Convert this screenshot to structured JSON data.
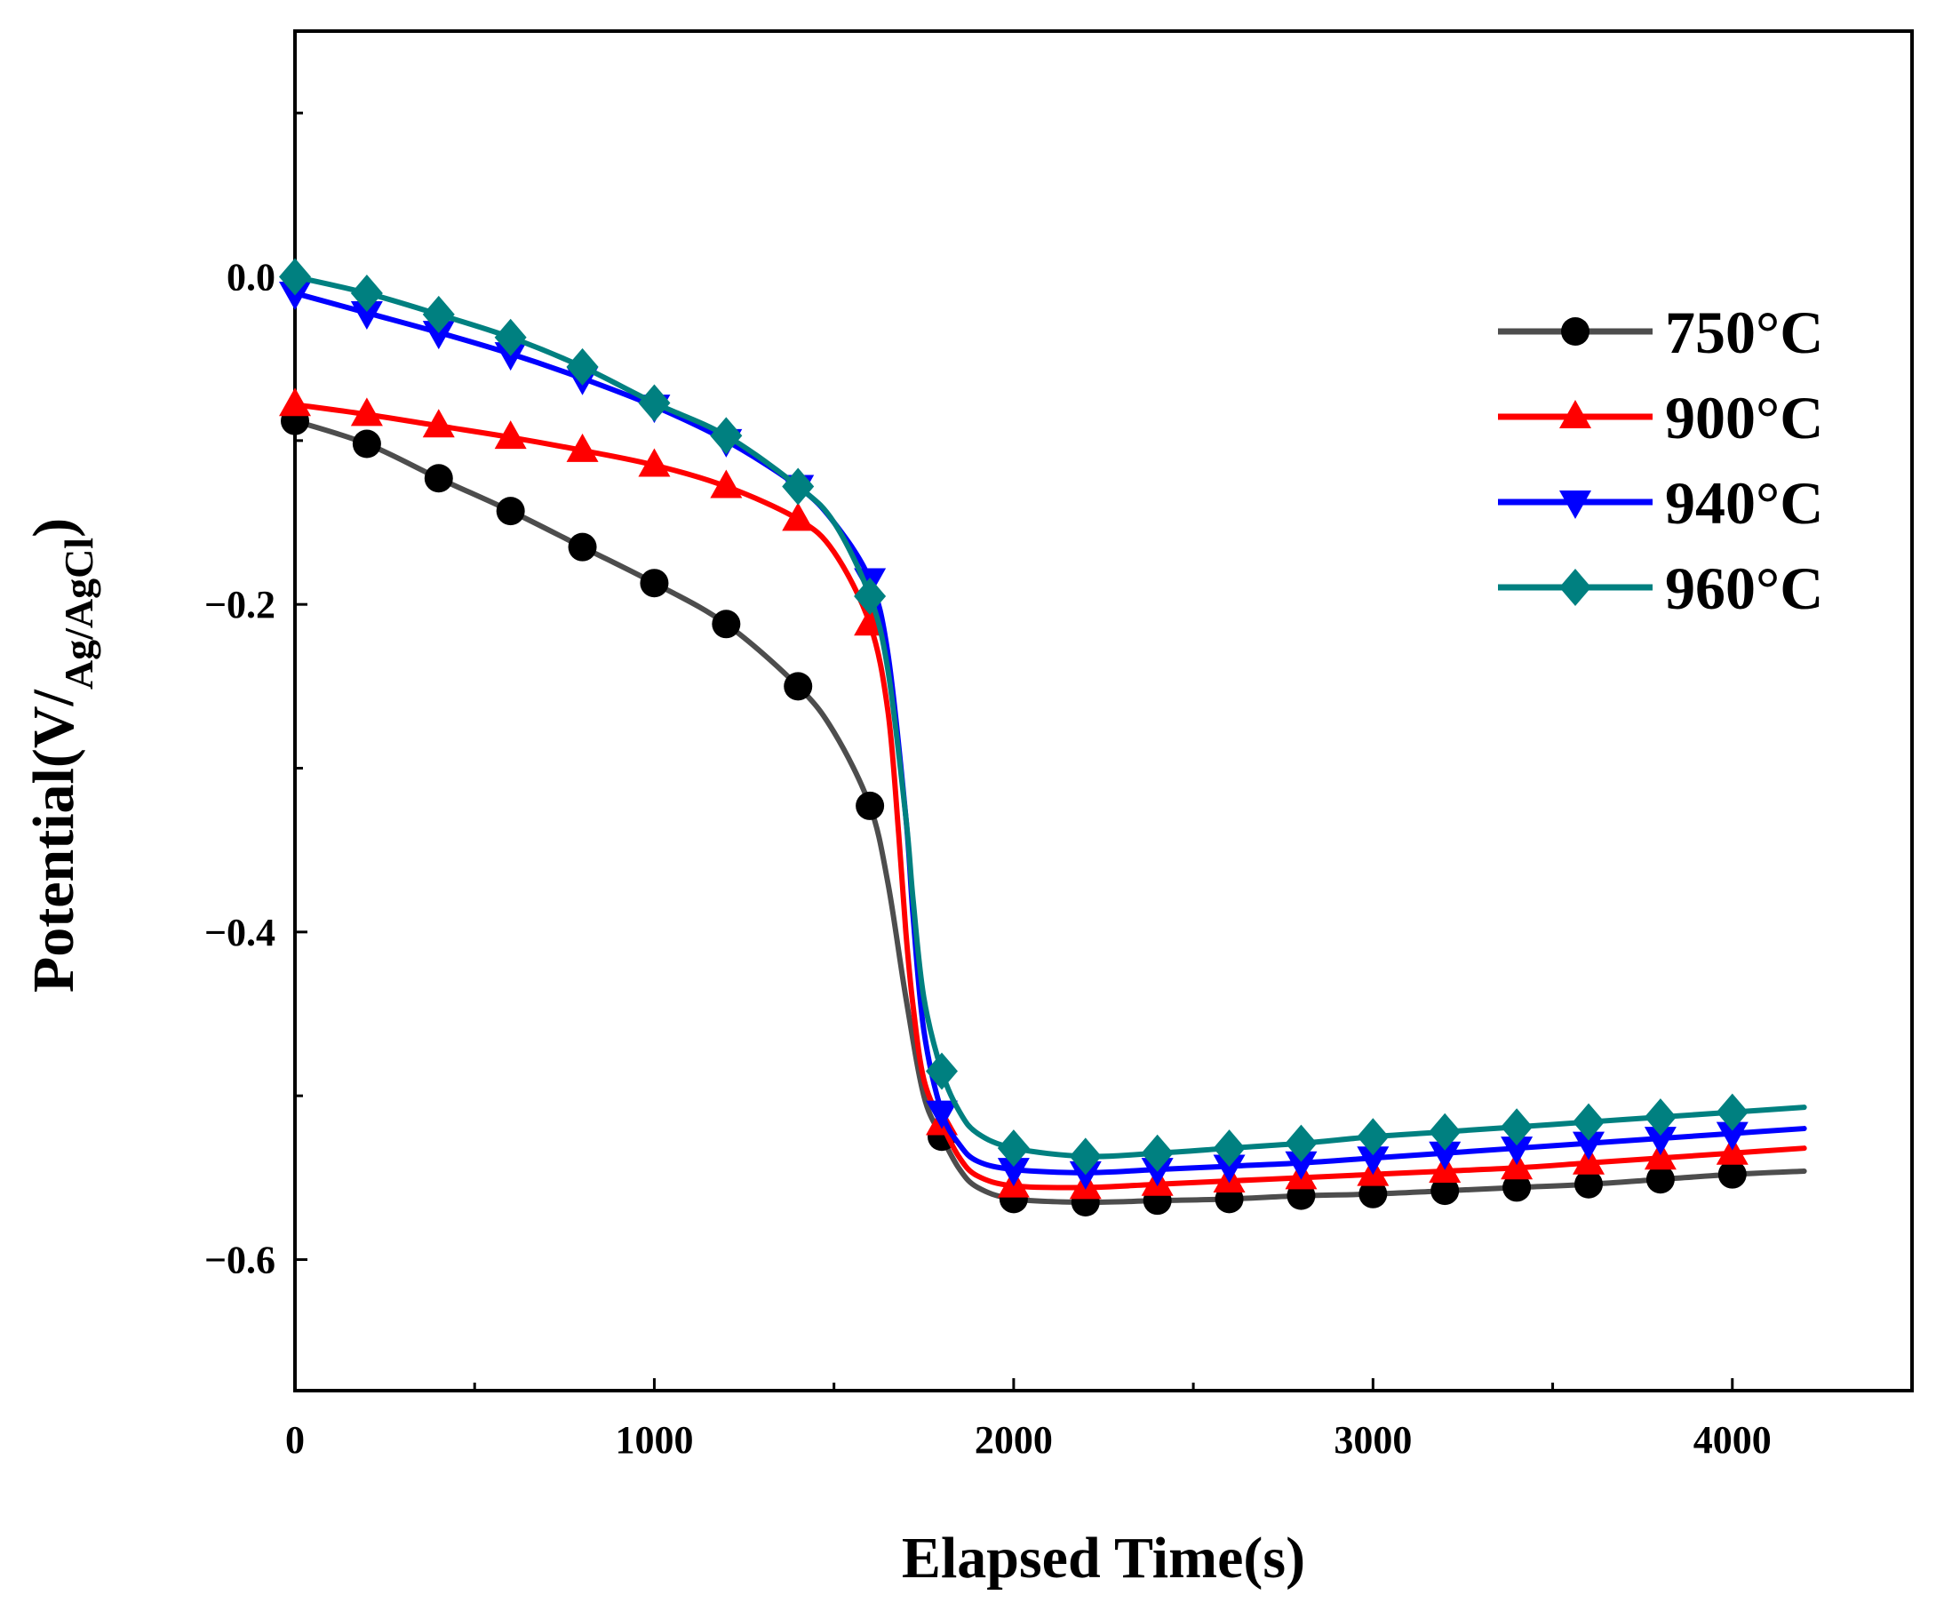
{
  "chart_data": {
    "type": "line",
    "title": "",
    "xlabel": "Elapsed Time(s)",
    "ylabel": {
      "main": "Potential(V/",
      "sub": "Ag/AgCl",
      "close": ")"
    },
    "xlim": [
      0,
      4500
    ],
    "ylim": [
      -0.68,
      0.15
    ],
    "xticks": [
      0,
      1000,
      2000,
      3000,
      4000
    ],
    "xtick_labels": [
      "0",
      "1000",
      "2000",
      "3000",
      "4000"
    ],
    "yticks": [
      0.0,
      -0.2,
      -0.4,
      -0.6
    ],
    "ytick_labels": [
      "0.0",
      "−0.2",
      "−0.4",
      "−0.6"
    ],
    "legend_position": "top-right",
    "series": [
      {
        "name": "750°C",
        "color": "#4d4d4d",
        "marker_color": "#000000",
        "marker": "circle",
        "markers_x": [
          0,
          200,
          400,
          600,
          800,
          1000,
          1200,
          1400,
          1600,
          1800,
          2000,
          2200,
          2400,
          2600,
          2800,
          3000,
          3200,
          3400,
          3600,
          3800,
          4000
        ],
        "markers_y": [
          -0.088,
          -0.102,
          -0.123,
          -0.143,
          -0.165,
          -0.187,
          -0.212,
          -0.25,
          -0.323,
          -0.525,
          -0.563,
          -0.565,
          -0.564,
          -0.563,
          -0.561,
          -0.56,
          -0.558,
          -0.556,
          -0.554,
          -0.551,
          -0.548
        ],
        "curve_x": [
          0,
          200,
          400,
          600,
          800,
          1000,
          1200,
          1400,
          1500,
          1600,
          1650,
          1700,
          1750,
          1800,
          1850,
          1900,
          2000,
          2200,
          2400,
          2600,
          2800,
          3000,
          3200,
          3400,
          3600,
          3800,
          4000,
          4200
        ],
        "curve_y": [
          -0.088,
          -0.102,
          -0.123,
          -0.143,
          -0.165,
          -0.187,
          -0.212,
          -0.25,
          -0.278,
          -0.323,
          -0.37,
          -0.44,
          -0.5,
          -0.525,
          -0.545,
          -0.556,
          -0.563,
          -0.565,
          -0.564,
          -0.563,
          -0.561,
          -0.56,
          -0.558,
          -0.556,
          -0.554,
          -0.551,
          -0.548,
          -0.546
        ]
      },
      {
        "name": "900°C",
        "color": "#ff0000",
        "marker_color": "#ff0000",
        "marker": "triangle-up",
        "markers_x": [
          0,
          200,
          400,
          600,
          800,
          1000,
          1200,
          1400,
          1600,
          1800,
          2000,
          2200,
          2400,
          2600,
          2800,
          3000,
          3200,
          3400,
          3600,
          3800,
          4000
        ],
        "markers_y": [
          -0.078,
          -0.084,
          -0.091,
          -0.098,
          -0.106,
          -0.115,
          -0.128,
          -0.148,
          -0.212,
          -0.517,
          -0.555,
          -0.556,
          -0.554,
          -0.552,
          -0.55,
          -0.548,
          -0.546,
          -0.544,
          -0.541,
          -0.538,
          -0.535
        ],
        "curve_x": [
          0,
          200,
          400,
          600,
          800,
          1000,
          1200,
          1400,
          1500,
          1600,
          1650,
          1680,
          1700,
          1720,
          1750,
          1800,
          1850,
          1900,
          2000,
          2200,
          2400,
          2600,
          2800,
          3000,
          3200,
          3400,
          3600,
          3800,
          4000,
          4200
        ],
        "curve_y": [
          -0.078,
          -0.084,
          -0.091,
          -0.098,
          -0.106,
          -0.115,
          -0.128,
          -0.148,
          -0.168,
          -0.212,
          -0.265,
          -0.34,
          -0.4,
          -0.445,
          -0.49,
          -0.517,
          -0.538,
          -0.549,
          -0.555,
          -0.556,
          -0.554,
          -0.552,
          -0.55,
          -0.548,
          -0.546,
          -0.544,
          -0.541,
          -0.538,
          -0.535,
          -0.532
        ]
      },
      {
        "name": "940°C",
        "color": "#0000ff",
        "marker_color": "#0000ff",
        "marker": "triangle-down",
        "markers_x": [
          0,
          200,
          400,
          600,
          800,
          1000,
          1200,
          1400,
          1600,
          1800,
          2000,
          2200,
          2400,
          2600,
          2800,
          3000,
          3200,
          3400,
          3600,
          3800,
          4000
        ],
        "markers_y": [
          -0.01,
          -0.022,
          -0.034,
          -0.047,
          -0.062,
          -0.079,
          -0.1,
          -0.128,
          -0.185,
          -0.51,
          -0.545,
          -0.547,
          -0.545,
          -0.543,
          -0.541,
          -0.538,
          -0.535,
          -0.532,
          -0.529,
          -0.526,
          -0.523
        ],
        "curve_x": [
          0,
          200,
          400,
          600,
          800,
          1000,
          1200,
          1400,
          1500,
          1600,
          1650,
          1700,
          1720,
          1750,
          1800,
          1850,
          1900,
          2000,
          2200,
          2400,
          2600,
          2800,
          3000,
          3200,
          3400,
          3600,
          3800,
          4000,
          4200
        ],
        "curve_y": [
          -0.01,
          -0.022,
          -0.034,
          -0.047,
          -0.062,
          -0.079,
          -0.1,
          -0.128,
          -0.15,
          -0.185,
          -0.23,
          -0.33,
          -0.39,
          -0.46,
          -0.51,
          -0.53,
          -0.54,
          -0.545,
          -0.547,
          -0.545,
          -0.543,
          -0.541,
          -0.538,
          -0.535,
          -0.532,
          -0.529,
          -0.526,
          -0.523,
          -0.52
        ]
      },
      {
        "name": "960°C",
        "color": "#008080",
        "marker_color": "#008080",
        "marker": "diamond",
        "markers_x": [
          0,
          200,
          400,
          600,
          800,
          1000,
          1200,
          1400,
          1600,
          1800,
          2000,
          2200,
          2400,
          2600,
          2800,
          3000,
          3200,
          3400,
          3600,
          3800,
          4000
        ],
        "markers_y": [
          0.0,
          -0.01,
          -0.023,
          -0.037,
          -0.055,
          -0.077,
          -0.097,
          -0.128,
          -0.195,
          -0.485,
          -0.532,
          -0.537,
          -0.535,
          -0.532,
          -0.529,
          -0.525,
          -0.522,
          -0.519,
          -0.516,
          -0.513,
          -0.51
        ],
        "curve_x": [
          0,
          200,
          400,
          600,
          800,
          1000,
          1200,
          1400,
          1500,
          1600,
          1650,
          1700,
          1720,
          1750,
          1800,
          1850,
          1900,
          2000,
          2200,
          2400,
          2600,
          2800,
          3000,
          3200,
          3400,
          3600,
          3800,
          4000,
          4200
        ],
        "curve_y": [
          0.0,
          -0.01,
          -0.023,
          -0.037,
          -0.055,
          -0.077,
          -0.097,
          -0.128,
          -0.15,
          -0.195,
          -0.24,
          -0.33,
          -0.38,
          -0.44,
          -0.485,
          -0.51,
          -0.523,
          -0.532,
          -0.537,
          -0.535,
          -0.532,
          -0.529,
          -0.525,
          -0.522,
          -0.519,
          -0.516,
          -0.513,
          -0.51,
          -0.507
        ]
      }
    ]
  }
}
